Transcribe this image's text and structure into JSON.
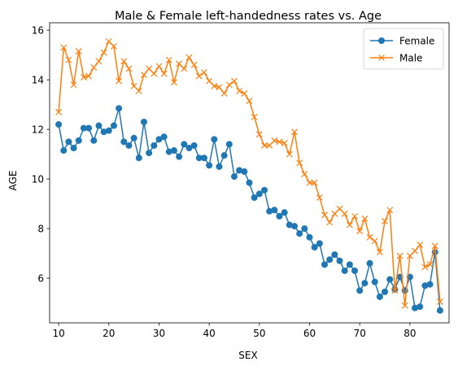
{
  "chart_data": {
    "type": "line",
    "title": "Male & Female left-handedness rates vs. Age",
    "xlabel": "SEX",
    "ylabel": "AGE",
    "xlim": [
      8.2,
      87.8
    ],
    "ylim": [
      4.2,
      16.3
    ],
    "x_ticks": [
      10,
      20,
      30,
      40,
      50,
      60,
      70,
      80
    ],
    "y_ticks": [
      6,
      8,
      10,
      12,
      14,
      16
    ],
    "grid": false,
    "legend_position": "top-right",
    "x": [
      10,
      11,
      12,
      13,
      14,
      15,
      16,
      17,
      18,
      19,
      20,
      21,
      22,
      23,
      24,
      25,
      26,
      27,
      28,
      29,
      30,
      31,
      32,
      33,
      34,
      35,
      36,
      37,
      38,
      39,
      40,
      41,
      42,
      43,
      44,
      45,
      46,
      47,
      48,
      49,
      50,
      51,
      52,
      53,
      54,
      55,
      56,
      57,
      58,
      59,
      60,
      61,
      62,
      63,
      64,
      65,
      66,
      67,
      68,
      69,
      70,
      71,
      72,
      73,
      74,
      75,
      76,
      77,
      78,
      79,
      80,
      81,
      82,
      83,
      84,
      85,
      86
    ],
    "series": [
      {
        "name": "Female",
        "color": "#1f77b4",
        "marker": "circle",
        "values": [
          12.2,
          11.15,
          11.5,
          11.25,
          11.55,
          12.05,
          12.05,
          11.55,
          12.15,
          11.9,
          11.95,
          12.15,
          12.85,
          11.5,
          11.35,
          11.65,
          10.85,
          12.3,
          11.05,
          11.35,
          11.6,
          11.7,
          11.1,
          11.15,
          10.9,
          11.4,
          11.25,
          11.35,
          10.85,
          10.85,
          10.55,
          11.6,
          10.5,
          10.95,
          11.4,
          10.1,
          10.35,
          10.3,
          9.85,
          9.25,
          9.4,
          9.55,
          8.7,
          8.75,
          8.5,
          8.65,
          8.15,
          8.1,
          7.8,
          8.0,
          7.65,
          7.25,
          7.4,
          6.55,
          6.75,
          6.95,
          6.7,
          6.3,
          6.55,
          6.3,
          5.5,
          5.8,
          6.6,
          5.85,
          5.25,
          5.45,
          5.95,
          5.55,
          6.05,
          5.5,
          6.05,
          4.8,
          4.85,
          5.7,
          5.75,
          7.05,
          4.7
        ]
      },
      {
        "name": "Male",
        "color": "#ff7f0e",
        "marker": "x",
        "values": [
          12.7,
          15.3,
          14.8,
          13.8,
          15.15,
          14.1,
          14.15,
          14.5,
          14.75,
          15.1,
          15.55,
          15.35,
          13.95,
          14.75,
          14.45,
          13.75,
          13.55,
          14.2,
          14.45,
          14.25,
          14.55,
          14.25,
          14.8,
          13.9,
          14.65,
          14.45,
          14.9,
          14.6,
          14.15,
          14.3,
          13.95,
          13.75,
          13.7,
          13.45,
          13.8,
          13.95,
          13.55,
          13.45,
          13.15,
          12.5,
          11.8,
          11.35,
          11.35,
          11.55,
          11.5,
          11.45,
          11.0,
          11.9,
          10.65,
          10.2,
          9.85,
          9.85,
          9.25,
          8.55,
          8.25,
          8.6,
          8.8,
          8.6,
          8.15,
          8.5,
          7.9,
          8.4,
          7.65,
          7.5,
          7.05,
          8.3,
          8.75,
          5.5,
          6.9,
          4.9,
          6.9,
          7.1,
          7.35,
          6.45,
          6.55,
          7.3,
          5.05
        ]
      }
    ]
  }
}
